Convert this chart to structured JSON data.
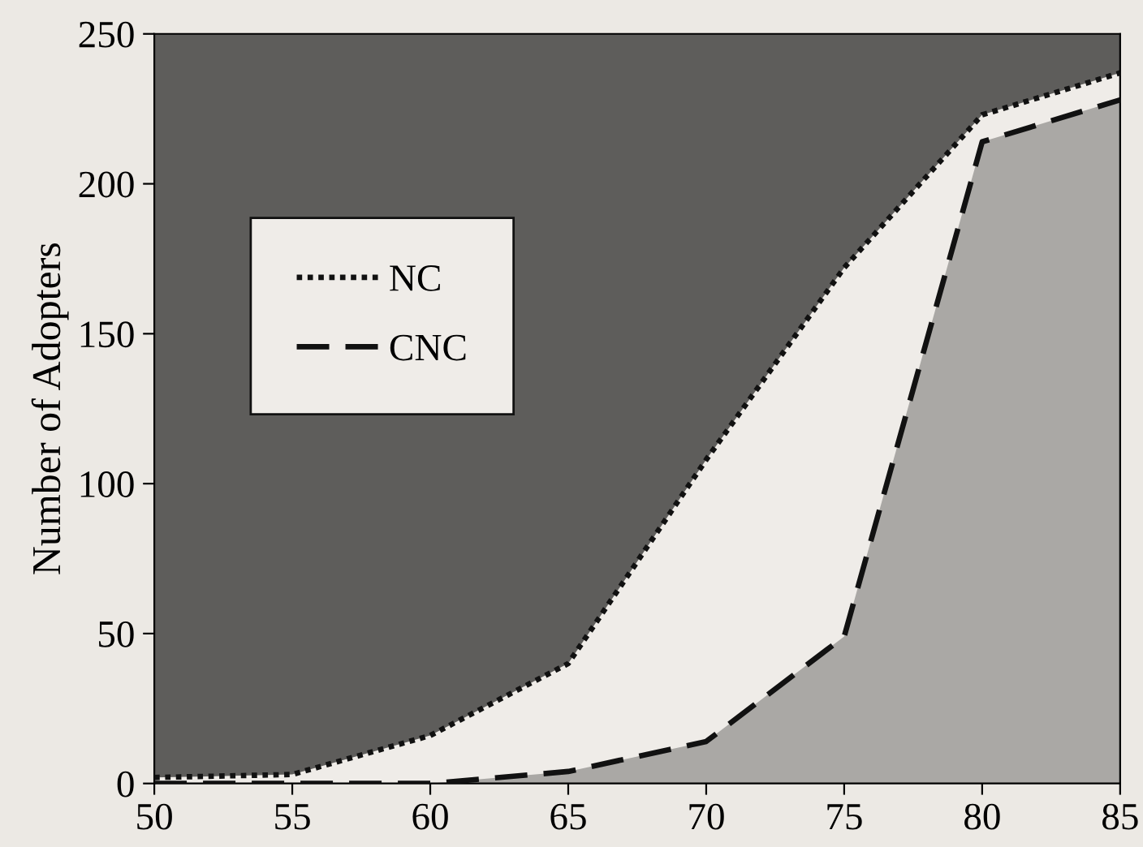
{
  "chart_data": {
    "type": "area",
    "ylabel": "Number of Adopters",
    "x": [
      50,
      55,
      60,
      65,
      70,
      75,
      80,
      85
    ],
    "series": [
      {
        "name": "NC",
        "color": "#efece8",
        "line_style": "dotted",
        "values": [
          2,
          3,
          16,
          40,
          108,
          172,
          223,
          237
        ]
      },
      {
        "name": "CNC",
        "color": "#aaa8a5",
        "line_style": "dashed",
        "values": [
          0,
          0,
          0,
          4,
          14,
          49,
          214,
          228
        ]
      }
    ],
    "xlim": [
      50,
      85
    ],
    "xticks": [
      50,
      55,
      60,
      65,
      70,
      75,
      80,
      85
    ],
    "ylim": [
      0,
      250
    ],
    "yticks": [
      0,
      50,
      100,
      150,
      200,
      250
    ],
    "legend": "top left",
    "grid": false
  }
}
